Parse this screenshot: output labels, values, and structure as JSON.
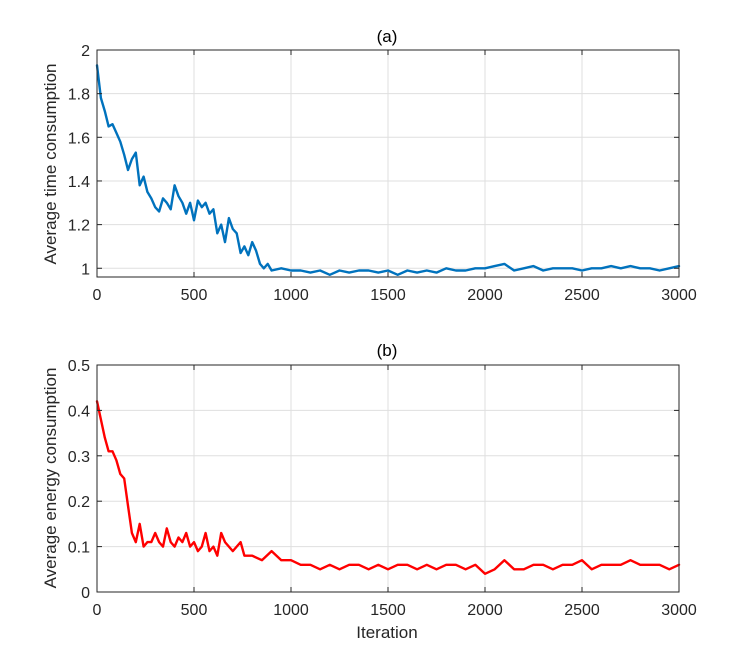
{
  "chart_data": [
    {
      "type": "line",
      "title": "(a)",
      "xlabel": "",
      "ylabel": "Average time consumption",
      "xlim": [
        0,
        3000
      ],
      "ylim": [
        0.96,
        2.0
      ],
      "xticks": [
        0,
        500,
        1000,
        1500,
        2000,
        2500,
        3000
      ],
      "yticks": [
        1,
        1.2,
        1.4,
        1.6,
        1.8,
        2
      ],
      "x_tick_labels": [
        "0",
        "500",
        "1000",
        "1500",
        "2000",
        "2500",
        "3000"
      ],
      "y_tick_labels": [
        "1",
        "1.2",
        "1.4",
        "1.6",
        "1.8",
        "2"
      ],
      "grid": true,
      "color": "#0072BD",
      "series": [
        {
          "x": [
            0,
            20,
            40,
            60,
            80,
            100,
            120,
            140,
            160,
            180,
            200,
            220,
            240,
            260,
            280,
            300,
            320,
            340,
            360,
            380,
            400,
            420,
            440,
            460,
            480,
            500,
            520,
            540,
            560,
            580,
            600,
            620,
            640,
            660,
            680,
            700,
            720,
            740,
            760,
            780,
            800,
            820,
            840,
            860,
            880,
            900,
            950,
            1000,
            1050,
            1100,
            1150,
            1200,
            1250,
            1300,
            1350,
            1400,
            1450,
            1500,
            1550,
            1600,
            1650,
            1700,
            1750,
            1800,
            1850,
            1900,
            1950,
            2000,
            2050,
            2100,
            2150,
            2200,
            2250,
            2300,
            2350,
            2400,
            2450,
            2500,
            2550,
            2600,
            2650,
            2700,
            2750,
            2800,
            2850,
            2900,
            2950,
            3000
          ],
          "y": [
            1.93,
            1.78,
            1.72,
            1.65,
            1.66,
            1.62,
            1.58,
            1.52,
            1.45,
            1.5,
            1.53,
            1.38,
            1.42,
            1.35,
            1.32,
            1.28,
            1.26,
            1.32,
            1.3,
            1.27,
            1.38,
            1.33,
            1.3,
            1.25,
            1.3,
            1.22,
            1.31,
            1.28,
            1.3,
            1.25,
            1.27,
            1.16,
            1.2,
            1.12,
            1.23,
            1.18,
            1.16,
            1.07,
            1.1,
            1.06,
            1.12,
            1.08,
            1.02,
            1.0,
            1.02,
            0.99,
            1.0,
            0.99,
            0.99,
            0.98,
            0.99,
            0.97,
            0.99,
            0.98,
            0.99,
            0.99,
            0.98,
            0.99,
            0.97,
            0.99,
            0.98,
            0.99,
            0.98,
            1.0,
            0.99,
            0.99,
            1.0,
            1.0,
            1.01,
            1.02,
            0.99,
            1.0,
            1.01,
            0.99,
            1.0,
            1.0,
            1.0,
            0.99,
            1.0,
            1.0,
            1.01,
            1.0,
            1.01,
            1.0,
            1.0,
            0.99,
            1.0,
            1.01
          ]
        }
      ]
    },
    {
      "type": "line",
      "title": "(b)",
      "xlabel": "Iteration",
      "ylabel": "Average energy consumption",
      "xlim": [
        0,
        3000
      ],
      "ylim": [
        0,
        0.5
      ],
      "xticks": [
        0,
        500,
        1000,
        1500,
        2000,
        2500,
        3000
      ],
      "yticks": [
        0,
        0.1,
        0.2,
        0.3,
        0.4,
        0.5
      ],
      "x_tick_labels": [
        "0",
        "500",
        "1000",
        "1500",
        "2000",
        "2500",
        "3000"
      ],
      "y_tick_labels": [
        "0",
        "0.1",
        "0.2",
        "0.3",
        "0.4",
        "0.5"
      ],
      "grid": true,
      "color": "#FF0000",
      "series": [
        {
          "x": [
            0,
            20,
            40,
            60,
            80,
            100,
            120,
            140,
            160,
            180,
            200,
            220,
            240,
            260,
            280,
            300,
            320,
            340,
            360,
            380,
            400,
            420,
            440,
            460,
            480,
            500,
            520,
            540,
            560,
            580,
            600,
            620,
            640,
            660,
            680,
            700,
            720,
            740,
            760,
            780,
            800,
            850,
            900,
            950,
            1000,
            1050,
            1100,
            1150,
            1200,
            1250,
            1300,
            1350,
            1400,
            1450,
            1500,
            1550,
            1600,
            1650,
            1700,
            1750,
            1800,
            1850,
            1900,
            1950,
            2000,
            2050,
            2100,
            2150,
            2200,
            2250,
            2300,
            2350,
            2400,
            2450,
            2500,
            2550,
            2600,
            2650,
            2700,
            2750,
            2800,
            2850,
            2900,
            2950,
            3000
          ],
          "y": [
            0.42,
            0.38,
            0.34,
            0.31,
            0.31,
            0.29,
            0.26,
            0.25,
            0.19,
            0.13,
            0.11,
            0.15,
            0.1,
            0.11,
            0.11,
            0.13,
            0.11,
            0.1,
            0.14,
            0.11,
            0.1,
            0.12,
            0.11,
            0.13,
            0.1,
            0.11,
            0.09,
            0.1,
            0.13,
            0.09,
            0.1,
            0.08,
            0.13,
            0.11,
            0.1,
            0.09,
            0.1,
            0.11,
            0.08,
            0.08,
            0.08,
            0.07,
            0.09,
            0.07,
            0.07,
            0.06,
            0.06,
            0.05,
            0.06,
            0.05,
            0.06,
            0.06,
            0.05,
            0.06,
            0.05,
            0.06,
            0.06,
            0.05,
            0.06,
            0.05,
            0.06,
            0.06,
            0.05,
            0.06,
            0.04,
            0.05,
            0.07,
            0.05,
            0.05,
            0.06,
            0.06,
            0.05,
            0.06,
            0.06,
            0.07,
            0.05,
            0.06,
            0.06,
            0.06,
            0.07,
            0.06,
            0.06,
            0.06,
            0.05,
            0.06
          ]
        }
      ]
    }
  ]
}
